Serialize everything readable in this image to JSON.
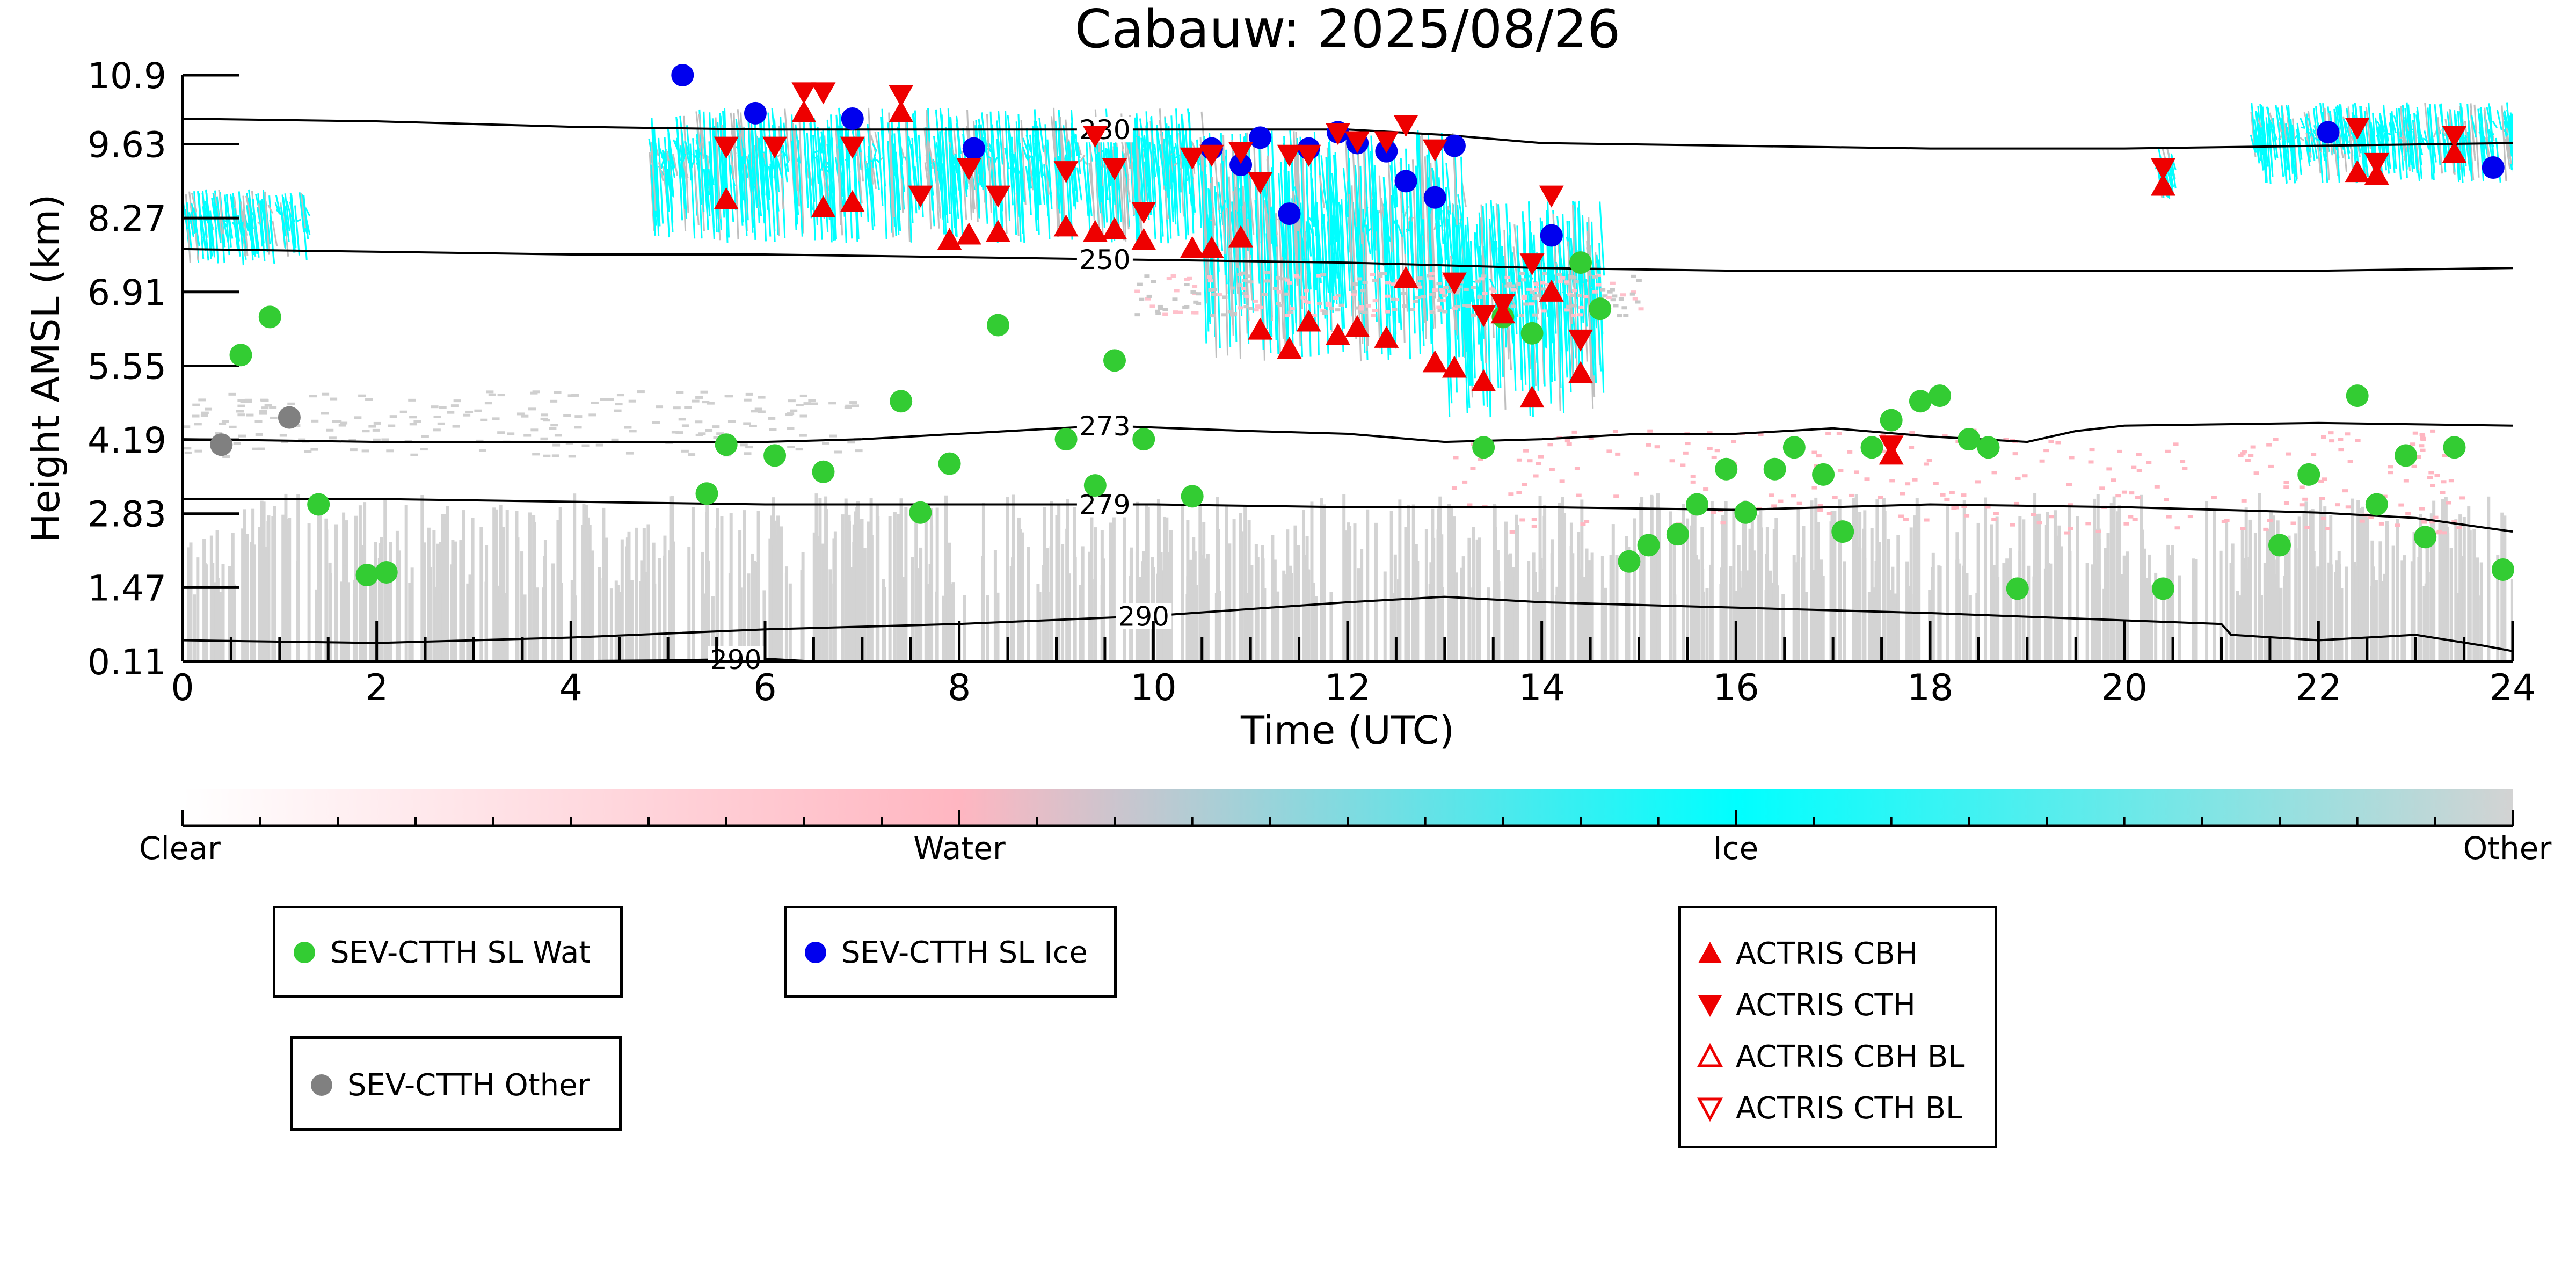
{
  "chart_data": {
    "type": "scatter",
    "title": "Cabauw: 2025/08/26",
    "xlabel": "Time (UTC)",
    "ylabel": "Height AMSL (km)",
    "xlim": [
      0,
      24
    ],
    "ylim": [
      0.11,
      10.9
    ],
    "xticks": [
      "0",
      "2",
      "4",
      "6",
      "8",
      "10",
      "12",
      "14",
      "16",
      "18",
      "20",
      "22",
      "24"
    ],
    "yticks": [
      "0.11",
      "1.47",
      "2.83",
      "4.19",
      "5.55",
      "6.91",
      "8.27",
      "9.63",
      "10.9"
    ],
    "colorbar": {
      "labels": [
        "Clear",
        "Water",
        "Ice",
        "Other"
      ],
      "colors": [
        "#ffffff",
        "#ffb6c1",
        "#00ffff",
        "#d3d3d3"
      ]
    },
    "isotherms": [
      {
        "label": "230",
        "label_x": 9.5,
        "x": [
          0,
          2,
          4,
          6,
          8,
          10,
          12,
          13,
          14,
          16,
          18,
          20,
          22,
          24
        ],
        "y": [
          10.1,
          10.05,
          9.95,
          9.9,
          9.9,
          9.9,
          9.9,
          9.8,
          9.65,
          9.6,
          9.55,
          9.55,
          9.6,
          9.65
        ]
      },
      {
        "label": "250",
        "label_x": 9.5,
        "x": [
          0,
          2,
          4,
          6,
          8,
          10,
          12,
          14,
          16,
          18,
          20,
          22,
          24
        ],
        "y": [
          7.7,
          7.65,
          7.6,
          7.6,
          7.55,
          7.5,
          7.45,
          7.35,
          7.3,
          7.3,
          7.3,
          7.3,
          7.35
        ]
      },
      {
        "label": "273",
        "label_x": 9.5,
        "x": [
          0,
          2,
          4,
          6,
          7,
          8,
          9.5,
          11,
          12,
          13,
          14,
          15,
          16,
          17,
          18,
          19,
          19.5,
          20,
          22,
          24
        ],
        "y": [
          4.2,
          4.15,
          4.15,
          4.15,
          4.2,
          4.3,
          4.45,
          4.35,
          4.3,
          4.15,
          4.2,
          4.3,
          4.3,
          4.4,
          4.25,
          4.15,
          4.35,
          4.45,
          4.5,
          4.45
        ]
      },
      {
        "label": "279",
        "label_x": 9.5,
        "x": [
          0,
          2,
          4,
          6,
          8,
          10,
          12,
          14,
          16,
          18,
          20,
          22,
          23,
          24
        ],
        "y": [
          3.1,
          3.1,
          3.05,
          3.0,
          3.0,
          3.0,
          2.95,
          2.95,
          2.9,
          3.0,
          2.95,
          2.85,
          2.75,
          2.5
        ]
      },
      {
        "label": "290",
        "label_x": 9.9,
        "x": [
          0,
          2,
          4,
          6,
          8,
          10,
          12,
          13,
          14,
          16,
          18,
          21,
          21.1,
          22,
          23,
          23.7,
          24
        ],
        "y": [
          0.5,
          0.45,
          0.55,
          0.7,
          0.8,
          0.95,
          1.2,
          1.3,
          1.2,
          1.1,
          1.0,
          0.8,
          0.6,
          0.5,
          0.6,
          0.4,
          0.3
        ]
      },
      {
        "label": "290",
        "label_x": 5.7,
        "x": [
          3.5,
          5,
          6,
          6.5
        ],
        "y": [
          0.11,
          0.13,
          0.16,
          0.11
        ]
      }
    ],
    "series": [
      {
        "name": "SEV-CTTH SL Wat",
        "marker": "circle",
        "color": "#33cc33",
        "x": [
          0.6,
          0.9,
          1.4,
          1.9,
          2.1,
          5.4,
          5.6,
          6.1,
          6.6,
          7.4,
          7.6,
          7.9,
          8.4,
          9.1,
          9.4,
          9.6,
          9.9,
          10.4,
          13.4,
          13.6,
          13.9,
          14.4,
          14.6,
          14.9,
          15.1,
          15.4,
          15.6,
          15.9,
          16.1,
          16.4,
          16.6,
          16.9,
          17.1,
          17.4,
          17.6,
          17.9,
          18.1,
          18.4,
          18.6,
          18.9,
          20.4,
          21.6,
          21.9,
          22.4,
          22.6,
          22.9,
          23.1,
          23.4,
          23.9
        ],
        "y": [
          5.75,
          6.45,
          3.0,
          1.7,
          1.75,
          3.2,
          4.1,
          3.9,
          3.6,
          4.9,
          2.85,
          3.75,
          6.3,
          4.2,
          3.35,
          5.65,
          4.2,
          3.15,
          4.05,
          6.45,
          6.15,
          7.45,
          6.6,
          1.95,
          2.25,
          2.45,
          3.0,
          3.65,
          2.85,
          3.65,
          4.05,
          3.55,
          2.5,
          4.05,
          4.55,
          4.9,
          5.0,
          4.2,
          4.05,
          1.45,
          1.45,
          2.25,
          3.55,
          5.0,
          3.0,
          3.9,
          2.4,
          4.05,
          1.8
        ]
      },
      {
        "name": "SEV-CTTH SL Ice",
        "marker": "circle",
        "color": "#0000ee",
        "x": [
          5.15,
          5.9,
          6.9,
          8.15,
          10.6,
          10.9,
          11.1,
          11.4,
          11.6,
          11.9,
          12.1,
          12.4,
          12.6,
          12.9,
          13.1,
          14.1,
          22.1,
          23.8
        ],
        "y": [
          10.9,
          10.2,
          10.1,
          9.55,
          9.55,
          9.25,
          9.75,
          8.35,
          9.55,
          9.85,
          9.65,
          9.5,
          8.95,
          8.65,
          9.6,
          7.95,
          9.85,
          9.2
        ]
      },
      {
        "name": "SEV-CTTH Other",
        "marker": "circle",
        "color": "#808080",
        "x": [
          0.4,
          1.1
        ],
        "y": [
          4.1,
          4.6
        ]
      },
      {
        "name": "ACTRIS CBH",
        "marker": "triangle-up",
        "color": "#ee0000",
        "x": [
          5.6,
          6.4,
          6.6,
          6.9,
          7.4,
          7.9,
          8.1,
          8.4,
          9.1,
          9.4,
          9.6,
          9.9,
          10.4,
          10.6,
          10.9,
          11.1,
          11.4,
          11.6,
          11.9,
          12.1,
          12.4,
          12.6,
          12.9,
          13.1,
          13.4,
          13.6,
          13.9,
          14.1,
          14.4,
          17.6,
          20.4,
          22.4,
          22.6,
          23.4
        ],
        "y": [
          8.6,
          10.2,
          8.45,
          8.55,
          10.2,
          7.85,
          7.95,
          8.0,
          8.1,
          8.0,
          8.05,
          7.85,
          7.7,
          7.7,
          7.9,
          6.2,
          5.85,
          6.35,
          6.1,
          6.25,
          6.05,
          7.15,
          5.6,
          5.5,
          5.25,
          6.5,
          4.95,
          6.9,
          5.4,
          3.9,
          8.85,
          9.1,
          9.05,
          9.45
        ]
      },
      {
        "name": "ACTRIS CTH",
        "marker": "triangle-down",
        "color": "#ee0000",
        "x": [
          5.6,
          6.1,
          6.4,
          6.6,
          6.9,
          7.4,
          7.6,
          8.1,
          8.4,
          9.1,
          9.4,
          9.6,
          9.9,
          10.4,
          10.6,
          10.9,
          11.1,
          11.4,
          11.6,
          11.9,
          12.1,
          12.4,
          12.6,
          12.9,
          13.1,
          13.4,
          13.6,
          13.9,
          14.1,
          14.4,
          17.6,
          20.4,
          22.4,
          22.6,
          23.4
        ],
        "y": [
          9.6,
          9.6,
          10.6,
          10.6,
          9.6,
          10.55,
          8.7,
          9.2,
          8.7,
          9.15,
          9.8,
          9.2,
          8.4,
          9.4,
          9.45,
          9.5,
          8.95,
          9.45,
          9.45,
          9.85,
          9.7,
          9.7,
          10.0,
          9.55,
          7.1,
          6.5,
          6.7,
          7.45,
          8.7,
          6.05,
          4.1,
          9.2,
          9.95,
          9.3,
          9.8
        ]
      }
    ]
  },
  "legend": {
    "sl_wat": "SEV-CTTH SL Wat",
    "sl_ice": "SEV-CTTH SL Ice",
    "other": "SEV-CTTH Other",
    "cbh": "ACTRIS CBH",
    "cth": "ACTRIS CTH",
    "cbh_bl": "ACTRIS CBH BL",
    "cth_bl": "ACTRIS CTH BL"
  }
}
